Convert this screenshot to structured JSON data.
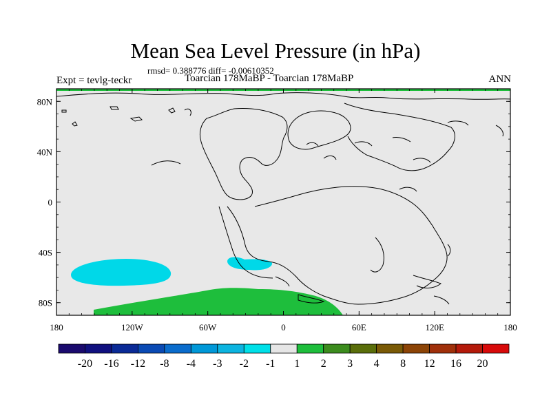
{
  "title": "Mean Sea Level Pressure (in hPa)",
  "stats": "rmsd= 0.388776 diff= -0.00610352",
  "expt": "Expt = tevlg-teckr",
  "subtitle": "Toarcian 178MaBP - Toarcian 178MaBP",
  "season": "ANN",
  "map": {
    "lon_ticks": [
      "180",
      "120W",
      "60W",
      "0",
      "60E",
      "120E",
      "180"
    ],
    "lat_ticks": [
      "80N",
      "40N",
      "0",
      "40S",
      "80S"
    ],
    "lon_range": [
      -180,
      180
    ],
    "lat_range": [
      -90,
      90
    ],
    "background_color": "#e8e8e8",
    "anomaly_regions": [
      {
        "name": "negative-anomaly-pacific",
        "sign": "negative",
        "color": "#00d8e8",
        "class_label": "-2 to -1"
      },
      {
        "name": "negative-anomaly-south-atlantic",
        "sign": "negative",
        "color": "#00d8e8",
        "class_label": "-2 to -1"
      },
      {
        "name": "positive-anomaly-antarctic",
        "sign": "positive",
        "color": "#1ebe3c",
        "class_label": "1 to 2"
      }
    ]
  },
  "colorbar": {
    "colors": [
      "#1a0a6e",
      "#10107f",
      "#0a2a96",
      "#0a4ab4",
      "#0a6ccc",
      "#0098d8",
      "#0cb4e0",
      "#00e0e8",
      "#e6e6e6",
      "#1ebe3c",
      "#3c8c1e",
      "#5a6e0a",
      "#7a5a06",
      "#8c4406",
      "#a0300a",
      "#b41a0a",
      "#d80a0a"
    ],
    "labels": [
      "-20",
      "-16",
      "-12",
      "-8",
      "-4",
      "-3",
      "-2",
      "-1",
      "1",
      "2",
      "3",
      "4",
      "8",
      "12",
      "16",
      "20"
    ]
  }
}
